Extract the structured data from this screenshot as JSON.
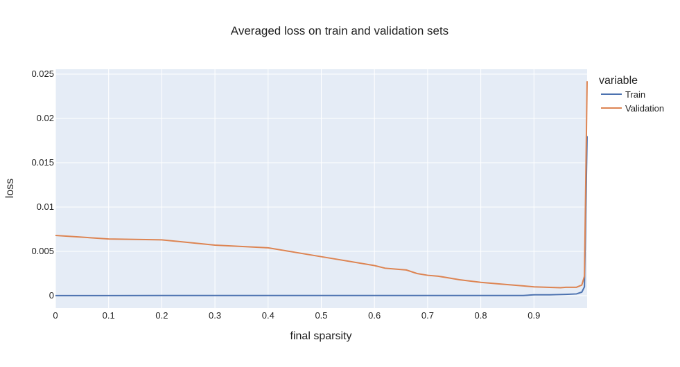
{
  "chart_data": {
    "type": "line",
    "title": "Averaged loss on train and validation sets",
    "xlabel": "final sparsity",
    "ylabel": "loss",
    "xlim": [
      0,
      1
    ],
    "ylim": [
      -0.0014,
      0.0255
    ],
    "xticks": [
      0,
      0.1,
      0.2,
      0.3,
      0.4,
      0.5,
      0.6,
      0.7,
      0.8,
      0.9
    ],
    "xtick_labels": [
      "0",
      "0.1",
      "0.2",
      "0.3",
      "0.4",
      "0.5",
      "0.6",
      "0.7",
      "0.8",
      "0.9"
    ],
    "yticks": [
      0,
      0.005,
      0.01,
      0.015,
      0.02,
      0.025
    ],
    "ytick_labels": [
      "0",
      "0.005",
      "0.01",
      "0.015",
      "0.02",
      "0.025"
    ],
    "grid": true,
    "legend": {
      "title": "variable",
      "placement": "top-right"
    },
    "series": [
      {
        "name": "Train",
        "color": "#4c72b0",
        "x": [
          0,
          0.1,
          0.2,
          0.3,
          0.4,
          0.5,
          0.6,
          0.7,
          0.8,
          0.88,
          0.9,
          0.93,
          0.96,
          0.98,
          0.99,
          0.995,
          1.0
        ],
        "y": [
          1e-05,
          1e-05,
          2e-05,
          2e-05,
          2e-05,
          2e-05,
          2e-05,
          2e-05,
          2e-05,
          2e-05,
          0.0001,
          0.0001,
          0.00015,
          0.0002,
          0.0004,
          0.001,
          0.018
        ]
      },
      {
        "name": "Validation",
        "color": "#dd8452",
        "x": [
          0,
          0.1,
          0.2,
          0.3,
          0.4,
          0.5,
          0.6,
          0.62,
          0.64,
          0.66,
          0.68,
          0.7,
          0.72,
          0.74,
          0.76,
          0.8,
          0.84,
          0.88,
          0.9,
          0.95,
          0.96,
          0.98,
          0.99,
          0.995,
          1.0
        ],
        "y": [
          0.0068,
          0.0064,
          0.0063,
          0.0057,
          0.0054,
          0.0044,
          0.0034,
          0.0031,
          0.003,
          0.0029,
          0.0025,
          0.0023,
          0.0022,
          0.002,
          0.0018,
          0.0015,
          0.0013,
          0.0011,
          0.001,
          0.0009,
          0.00095,
          0.00095,
          0.0012,
          0.0022,
          0.0242
        ]
      }
    ]
  }
}
